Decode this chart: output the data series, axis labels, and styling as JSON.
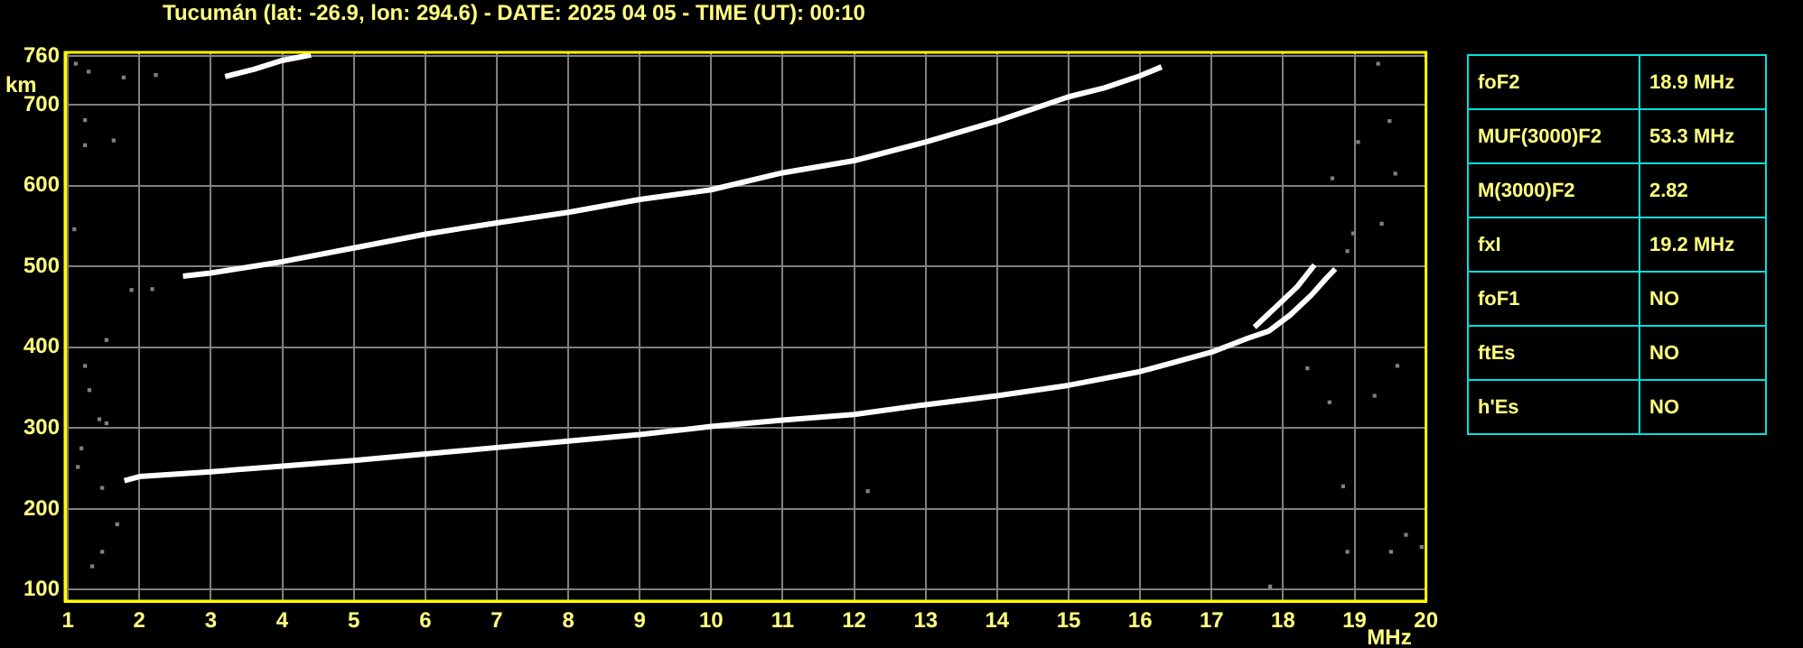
{
  "chart_data": [
    {
      "type": "scatter",
      "title": "Tucumán (lat: -26.9, lon: 294.6) - DATE: 2025 04 05 - TIME (UT): 00:10",
      "xlabel": "MHz",
      "ylabel": "km",
      "xlim": [
        0.96,
        20
      ],
      "xticks": [
        1,
        2,
        3,
        4,
        5,
        6,
        7,
        8,
        9,
        10,
        11,
        12,
        13,
        14,
        15,
        16,
        17,
        18,
        19,
        20
      ],
      "ylim": [
        86,
        765
      ],
      "yticks": [
        100,
        200,
        300,
        400,
        500,
        600,
        700,
        760
      ],
      "grid": true,
      "legend": false,
      "series": [
        {
          "type": "line",
          "color": "#ffffff",
          "marker": "none",
          "x": [
            1.79,
            2,
            3,
            4,
            5,
            6,
            7,
            8,
            9,
            10,
            11,
            12,
            13,
            14,
            15,
            16,
            17,
            17.5,
            17.8,
            18.1,
            18.4,
            18.6,
            18.73
          ],
          "values": [
            235,
            240,
            246,
            253,
            260,
            268,
            276,
            284,
            292,
            302,
            310,
            317,
            329,
            340,
            353,
            370,
            394,
            411,
            420,
            440,
            465,
            485,
            497
          ]
        },
        {
          "type": "line",
          "color": "#ffffff",
          "marker": "none",
          "x": [
            17.6,
            17.9,
            18.2,
            18.44
          ],
          "values": [
            425,
            450,
            475,
            502
          ]
        },
        {
          "type": "line",
          "color": "#ffffff",
          "marker": "none",
          "x": [
            2.61,
            3,
            4,
            5,
            6,
            7,
            8,
            9,
            10,
            11,
            12,
            13,
            14,
            15,
            15.5,
            16,
            16.3
          ],
          "values": [
            488,
            492,
            506,
            523,
            540,
            554,
            567,
            583,
            595,
            616,
            631,
            654,
            680,
            710,
            721,
            736,
            747
          ]
        },
        {
          "type": "line",
          "color": "#ffffff",
          "marker": "none",
          "x": [
            3.2,
            3.6,
            4,
            4.4
          ],
          "values": [
            735,
            744,
            755,
            762
          ]
        },
        {
          "type": "scatter",
          "color": "#808080",
          "marker": "square",
          "x": [
            1.24,
            1.3,
            1.44,
            1.54,
            1.19,
            1.14,
            1.48,
            1.69,
            1.48,
            1.34,
            1.54,
            1.11,
            1.29,
            1.24,
            1.24,
            1.64,
            1.09,
            1.89,
            2.18,
            1.78,
            2.23,
            19.6,
            19.28,
            18.65,
            18.84,
            19.72,
            19.51,
            18.9,
            17.82,
            12.19,
            18.34,
            19.94,
            19.33,
            19.05,
            19.49,
            19.57,
            19.38,
            18.69,
            18.9,
            18.98
          ],
          "values": [
            377,
            347,
            311,
            306,
            275,
            252,
            226,
            181,
            147,
            129,
            409,
            751,
            741,
            681,
            650,
            656,
            546,
            471,
            472,
            734,
            737,
            377,
            340,
            332,
            228,
            168,
            147,
            147,
            104,
            222,
            374,
            153,
            751,
            654,
            680,
            615,
            553,
            609,
            519,
            541
          ]
        }
      ]
    },
    {
      "type": "other",
      "annotations": [
        "foF2",
        "18.9 MHz",
        "MUF(3000)F2",
        "53.3 MHz",
        "M(3000)F2",
        "2.82",
        "fxI",
        "19.2 MHz",
        "foF1",
        "NO",
        "ftEs",
        "NO",
        "h'Es",
        "NO"
      ]
    }
  ]
}
